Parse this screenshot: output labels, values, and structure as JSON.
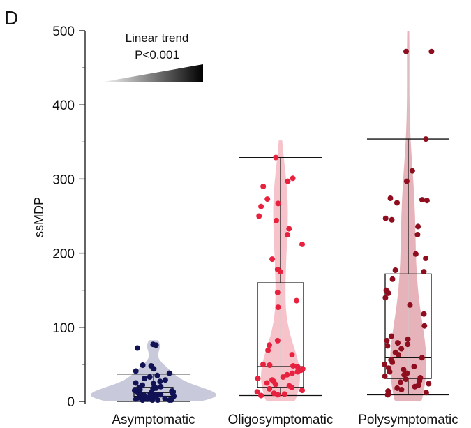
{
  "panel_label": "D",
  "annotation": {
    "line1": "Linear trend",
    "line2": "P<0.001"
  },
  "chart_data": {
    "type": "box-violin-strip",
    "ylabel": "ssMDP",
    "ylim": [
      0,
      500
    ],
    "yticks": [
      "0",
      "100",
      "200",
      "300",
      "400",
      "500"
    ],
    "categories": [
      "Asymptomatic",
      "Oligosymptomatic",
      "Polysymptomatic"
    ],
    "colors": {
      "Asymptomatic": "#111155",
      "Oligosymptomatic": "#e8213f",
      "Polysymptomatic": "#8e0d1e"
    },
    "violin_colors": {
      "Asymptomatic": "#c9c9dc",
      "Oligosymptomatic": "#f6c3cb",
      "Polysymptomatic": "#e6b3ba"
    },
    "boxes": [
      {
        "category": "Asymptomatic",
        "min": 0,
        "q1": 7,
        "median": 12,
        "q3": 19,
        "whisker_high": 37
      },
      {
        "category": "Oligosymptomatic",
        "min": 8,
        "q1": 19,
        "median": 47,
        "q3": 160,
        "whisker_high": 329
      },
      {
        "category": "Polysymptomatic",
        "min": 9,
        "q1": 31,
        "median": 59,
        "q3": 172,
        "whisker_high": 354
      }
    ],
    "points": {
      "Asymptomatic": [
        77,
        76,
        72,
        49,
        48,
        44,
        41,
        38,
        35,
        33,
        31,
        29,
        27,
        25,
        24,
        22,
        20,
        19,
        18,
        17,
        16,
        15,
        14,
        13,
        12,
        12,
        11,
        10,
        10,
        9,
        9,
        8,
        8,
        7,
        7,
        6,
        6,
        5,
        5,
        4,
        4,
        3,
        3,
        2,
        2,
        1,
        1,
        0,
        0
      ],
      "Oligosymptomatic": [
        329,
        301,
        297,
        290,
        273,
        267,
        263,
        250,
        244,
        233,
        225,
        212,
        192,
        178,
        175,
        147,
        136,
        127,
        82,
        76,
        69,
        63,
        50,
        49,
        48,
        47,
        44,
        42,
        40,
        38,
        36,
        33,
        31,
        29,
        27,
        25,
        23,
        21,
        19,
        17,
        15,
        13,
        11,
        10,
        9,
        8
      ],
      "Polysymptomatic": [
        472,
        472,
        354,
        311,
        297,
        274,
        272,
        271,
        268,
        247,
        245,
        236,
        225,
        199,
        193,
        177,
        175,
        165,
        150,
        146,
        140,
        130,
        118,
        102,
        88,
        84,
        82,
        79,
        77,
        75,
        71,
        66,
        63,
        59,
        56,
        53,
        50,
        47,
        45,
        43,
        40,
        38,
        36,
        34,
        32,
        30,
        28,
        26,
        24,
        22,
        20,
        18,
        16,
        14,
        12,
        10,
        9
      ]
    }
  }
}
